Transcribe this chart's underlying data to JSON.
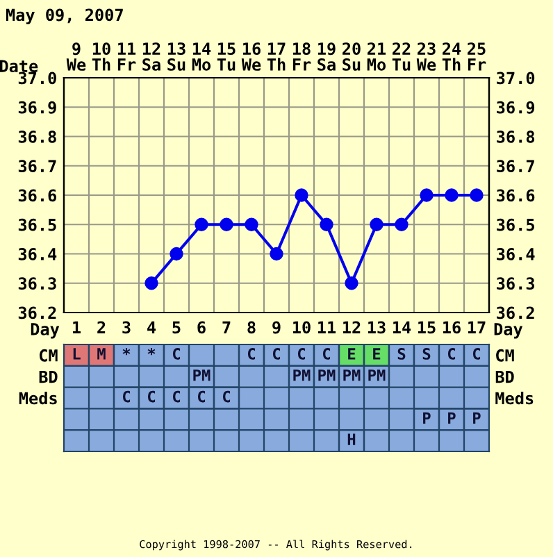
{
  "chart_data": [
    {
      "type": "line",
      "title": "May 09, 2007",
      "xlabel": "Date",
      "categories": [
        "9\nWe",
        "10\nTh",
        "11\nFr",
        "12\nSa",
        "13\nSu",
        "14\nMo",
        "15\nTu",
        "16\nWe",
        "17\nTh",
        "18\nFr",
        "19\nSa",
        "20\nSu",
        "21\nMo",
        "22\nTu",
        "23\nWe",
        "24\nTh",
        "25\nFr"
      ],
      "series": [
        {
          "color": "#0000ee",
          "values": [
            null,
            null,
            null,
            36.3,
            36.4,
            36.5,
            36.5,
            36.5,
            36.4,
            36.6,
            36.5,
            36.3,
            36.5,
            36.5,
            36.6,
            36.6,
            36.6
          ]
        }
      ],
      "ylim": [
        36.2,
        37.0
      ],
      "yticks": [
        36.2,
        36.3,
        36.4,
        36.5,
        36.6,
        36.7,
        36.8,
        36.9,
        {
          "value": 37.0,
          "label": "37.0"
        }
      ],
      "y2lim": [
        36.2,
        37.0
      ],
      "y2ticks": [
        36.2,
        36.3,
        36.4,
        36.5,
        36.6,
        36.7,
        36.8,
        36.9,
        {
          "value": 37.0,
          "label": "37.0"
        }
      ],
      "grid": true,
      "marker": "circle",
      "line_style": "solid",
      "legend": false
    },
    {
      "type": "heatmap",
      "xlabel": "Day",
      "categories": [
        "1",
        "2",
        "3",
        "4",
        "5",
        "6",
        "7",
        "8",
        "9",
        "10",
        "11",
        "12",
        "13",
        "14",
        "15",
        "16",
        "17"
      ],
      "y_categories": [
        "CM",
        "BD",
        "Meds",
        null,
        null
      ],
      "y2_categories": [
        "CM",
        "BD",
        "Meds",
        null,
        null
      ],
      "cells": [
        [
          "L",
          "M",
          "*",
          "*",
          "C",
          null,
          null,
          "C",
          "C",
          "C",
          "C",
          "E",
          "E",
          "S",
          "S",
          "C",
          "C"
        ],
        [
          null,
          null,
          null,
          null,
          null,
          "PM",
          null,
          null,
          null,
          "PM",
          "PM",
          "PM",
          "PM",
          null,
          null,
          null,
          null
        ],
        [
          null,
          null,
          "C",
          "C",
          "C",
          "C",
          "C",
          null,
          null,
          null,
          null,
          null,
          null,
          null,
          null,
          null,
          null
        ],
        [
          null,
          null,
          null,
          null,
          null,
          null,
          null,
          null,
          null,
          null,
          null,
          null,
          null,
          null,
          "P",
          "P",
          "P"
        ],
        [
          null,
          null,
          null,
          null,
          null,
          null,
          null,
          null,
          null,
          null,
          null,
          "H",
          null,
          null,
          null,
          null,
          null
        ]
      ],
      "colors": [
        [
          "#e07777",
          "#e07777",
          "#88aadd",
          "#88aadd",
          "#88aadd",
          "#88aadd",
          "#88aadd",
          "#88aadd",
          "#88aadd",
          "#88aadd",
          "#88aadd",
          "#66dd66",
          "#66dd66",
          "#88aadd",
          "#88aadd",
          "#88aadd",
          "#88aadd"
        ],
        [
          "#88aadd",
          "#88aadd",
          "#88aadd",
          "#88aadd",
          "#88aadd",
          "#88aadd",
          "#88aadd",
          "#88aadd",
          "#88aadd",
          "#88aadd",
          "#88aadd",
          "#88aadd",
          "#88aadd",
          "#88aadd",
          "#88aadd",
          "#88aadd",
          "#88aadd"
        ],
        [
          "#88aadd",
          "#88aadd",
          "#88aadd",
          "#88aadd",
          "#88aadd",
          "#88aadd",
          "#88aadd",
          "#88aadd",
          "#88aadd",
          "#88aadd",
          "#88aadd",
          "#88aadd",
          "#88aadd",
          "#88aadd",
          "#88aadd",
          "#88aadd",
          "#88aadd"
        ],
        [
          "#88aadd",
          "#88aadd",
          "#88aadd",
          "#88aadd",
          "#88aadd",
          "#88aadd",
          "#88aadd",
          "#88aadd",
          "#88aadd",
          "#88aadd",
          "#88aadd",
          "#88aadd",
          "#88aadd",
          "#88aadd",
          "#88aadd",
          "#88aadd",
          "#88aadd"
        ],
        [
          "#88aadd",
          "#88aadd",
          "#88aadd",
          "#88aadd",
          "#88aadd",
          "#88aadd",
          "#88aadd",
          "#88aadd",
          "#88aadd",
          "#88aadd",
          "#88aadd",
          "#88aadd",
          "#88aadd",
          "#88aadd",
          "#88aadd",
          "#88aadd",
          "#88aadd"
        ]
      ],
      "annotations": [
        "Copyright 1998-2007 -- All Rights Reserved."
      ]
    }
  ]
}
